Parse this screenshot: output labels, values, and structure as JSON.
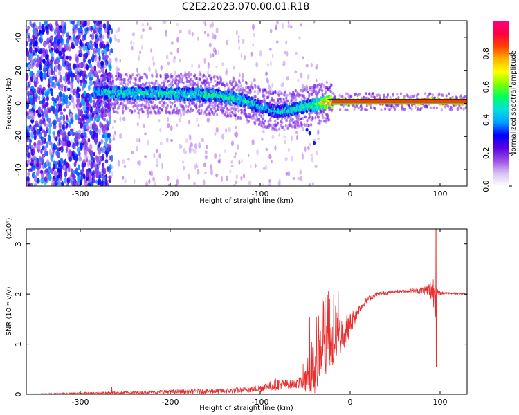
{
  "title": "C2E2.2023.070.00.01.R18",
  "chart_data": [
    {
      "type": "heatmap",
      "name": "spectrogram",
      "xlabel": "Height of straight line (km)",
      "ylabel": "Frequency (Hz)",
      "xlim": [
        -360,
        130
      ],
      "ylim": [
        -50,
        50
      ],
      "xticks": [
        -300,
        -200,
        -100,
        0,
        100
      ],
      "yticks": [
        -40,
        -20,
        0,
        20,
        40
      ],
      "colorbar": {
        "label": "Normalized spectral amplitude",
        "range": [
          0.0,
          1.0
        ],
        "ticks": [
          0.0,
          0.2,
          0.4,
          0.6,
          0.8
        ],
        "colors": [
          "#ffffff",
          "#d9c2f2",
          "#9b4fe6",
          "#5a00e0",
          "#0000ff",
          "#00a0ff",
          "#00e0e0",
          "#00ff60",
          "#7fff00",
          "#ffff00",
          "#ffb000",
          "#ff4000",
          "#ff0040",
          "#ff0080"
        ]
      },
      "ridge": [
        {
          "x": -282,
          "f": 7,
          "amp": 0.45
        },
        {
          "x": -250,
          "f": 6,
          "amp": 0.5
        },
        {
          "x": -200,
          "f": 6,
          "amp": 0.5
        },
        {
          "x": -150,
          "f": 5,
          "amp": 0.5
        },
        {
          "x": -120,
          "f": 2,
          "amp": 0.5
        },
        {
          "x": -100,
          "f": -2,
          "amp": 0.45
        },
        {
          "x": -80,
          "f": -5,
          "amp": 0.45
        },
        {
          "x": -60,
          "f": -3,
          "amp": 0.5
        },
        {
          "x": -40,
          "f": -1,
          "amp": 0.55
        },
        {
          "x": -25,
          "f": 1,
          "amp": 0.75
        },
        {
          "x": -10,
          "f": 1,
          "amp": 0.8
        },
        {
          "x": 0,
          "f": 1,
          "amp": 0.85
        },
        {
          "x": 20,
          "f": 1,
          "amp": 0.95
        },
        {
          "x": 80,
          "f": 1,
          "amp": 0.95
        },
        {
          "x": 90,
          "f": 2,
          "amp": 0.85
        },
        {
          "x": 100,
          "f": 1,
          "amp": 0.9
        },
        {
          "x": 130,
          "f": 1,
          "amp": 0.9
        }
      ]
    },
    {
      "type": "line",
      "name": "snr",
      "xlabel": "Height of straight line (km)",
      "ylabel": "SNR (10 * v/v)",
      "yscale_label": "(x10",
      "yscale_exp": "4",
      "xlim": [
        -360,
        130
      ],
      "ylim": [
        0,
        3.3
      ],
      "xticks": [
        -300,
        -200,
        -100,
        0,
        100
      ],
      "yticks": [
        0,
        1,
        2,
        3
      ],
      "color": "#e83030",
      "envelope": {
        "x": [
          -360,
          -300,
          -250,
          -200,
          -150,
          -120,
          -100,
          -80,
          -60,
          -50,
          -45,
          -40,
          -30,
          -20,
          -10,
          0,
          10,
          20,
          30,
          50,
          70,
          85,
          92,
          95,
          96,
          97,
          100,
          110,
          130
        ],
        "base": [
          0.0,
          0.02,
          0.03,
          0.05,
          0.06,
          0.08,
          0.12,
          0.2,
          0.2,
          0.25,
          0.5,
          0.55,
          0.8,
          1.0,
          1.2,
          1.4,
          1.7,
          1.9,
          2.0,
          2.05,
          2.07,
          2.08,
          2.08,
          2.0,
          2.0,
          2.02,
          2.02,
          2.02,
          2.0
        ],
        "jitter": [
          0.005,
          0.02,
          0.03,
          0.04,
          0.05,
          0.06,
          0.08,
          0.12,
          0.08,
          0.2,
          0.5,
          0.6,
          0.6,
          0.5,
          0.4,
          0.25,
          0.1,
          0.06,
          0.04,
          0.03,
          0.04,
          0.1,
          0.3,
          0.5,
          0.2,
          0.08,
          0.04,
          0.02,
          0.01
        ]
      },
      "spikes": [
        {
          "x": 95.5,
          "y": 3.3
        },
        {
          "x": 95.8,
          "y": 0.55
        },
        {
          "x": -28,
          "y": 1.95
        },
        {
          "x": -265,
          "y": 0.14
        }
      ]
    }
  ]
}
